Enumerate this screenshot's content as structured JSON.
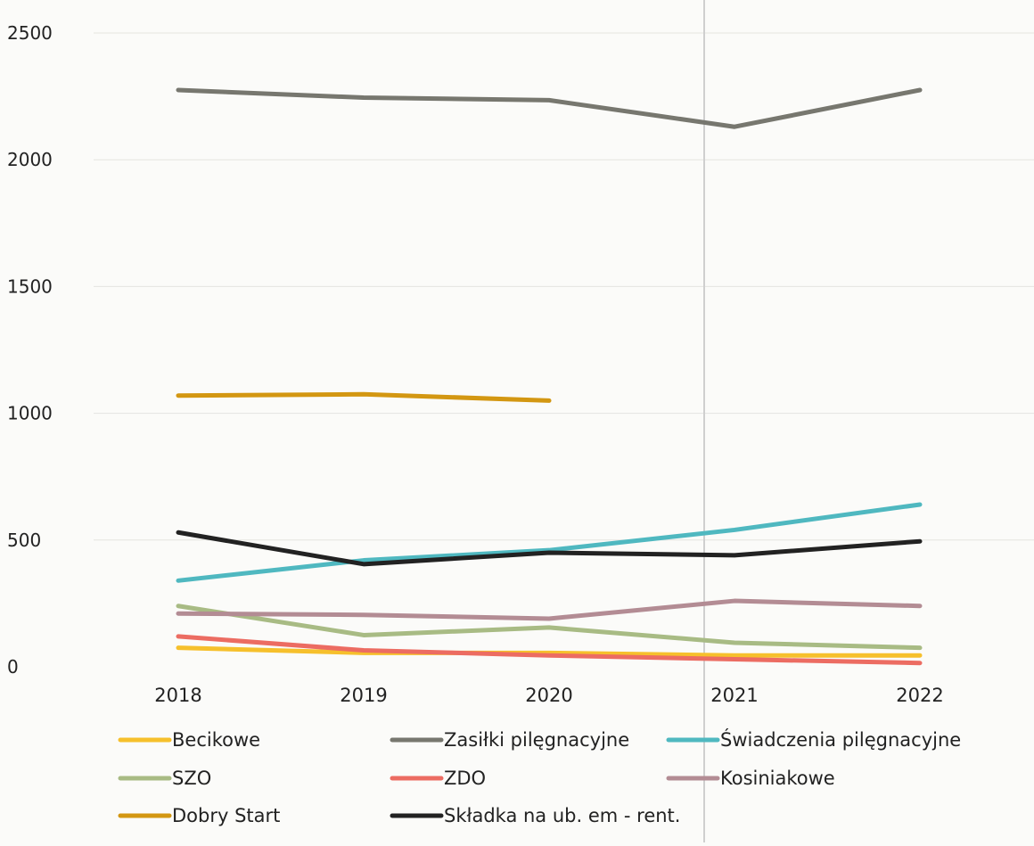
{
  "chart_data": {
    "type": "line",
    "title": "",
    "xlabel": "",
    "ylabel": "",
    "categories": [
      "2018",
      "2019",
      "2020",
      "2021",
      "2022"
    ],
    "ylim": [
      0,
      2500
    ],
    "y_ticks": [
      "0",
      "500",
      "1000",
      "1500",
      "2000",
      "2500"
    ],
    "grid": true,
    "legend_position": "bottom",
    "series": [
      {
        "name": "Becikowe",
        "color": "#f6c02c",
        "values": [
          75,
          55,
          55,
          45,
          45
        ]
      },
      {
        "name": "Zasiłki pilęgnacyjne",
        "color": "#77776f",
        "values": [
          2275,
          2245,
          2235,
          2130,
          2275
        ]
      },
      {
        "name": "Świadczenia pilęgnacyjne",
        "color": "#4fb8c0",
        "values": [
          340,
          420,
          460,
          540,
          640
        ]
      },
      {
        "name": "SZO",
        "color": "#a8bb84",
        "values": [
          240,
          125,
          155,
          95,
          75
        ]
      },
      {
        "name": "ZDO",
        "color": "#ec6c62",
        "values": [
          120,
          65,
          45,
          30,
          15
        ]
      },
      {
        "name": "Kosiniakowe",
        "color": "#b38c94",
        "values": [
          210,
          205,
          190,
          260,
          240
        ]
      },
      {
        "name": "Dobry Start",
        "color": "#d39712",
        "values": [
          1070,
          1075,
          1050,
          null,
          null
        ]
      },
      {
        "name": "Składka na ub. em - rent.",
        "color": "#222222",
        "values": [
          530,
          405,
          450,
          440,
          495
        ]
      }
    ]
  }
}
